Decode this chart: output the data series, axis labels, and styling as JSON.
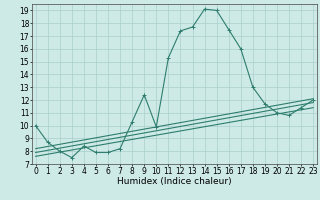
{
  "xlabel": "Humidex (Indice chaleur)",
  "main_line_x": [
    0,
    1,
    2,
    3,
    4,
    5,
    6,
    7,
    8,
    9,
    10,
    11,
    12,
    13,
    14,
    15,
    16,
    17,
    18,
    19,
    20,
    21,
    22,
    23
  ],
  "main_line_y": [
    10.0,
    8.7,
    8.0,
    7.5,
    8.4,
    7.9,
    7.9,
    8.2,
    10.3,
    12.4,
    9.9,
    15.3,
    17.4,
    17.7,
    19.1,
    19.0,
    17.5,
    16.0,
    13.0,
    11.7,
    11.0,
    10.8,
    11.4,
    12.0
  ],
  "reg_line1_x": [
    0,
    23
  ],
  "reg_line1_y": [
    7.9,
    11.8
  ],
  "reg_line2_x": [
    0,
    23
  ],
  "reg_line2_y": [
    7.6,
    11.4
  ],
  "reg_line3_x": [
    0,
    23
  ],
  "reg_line3_y": [
    8.2,
    12.1
  ],
  "line_color": "#2e7d6e",
  "bg_color": "#cdeae6",
  "grid_color": "#aacfcb",
  "xlim": [
    -0.3,
    23.3
  ],
  "ylim": [
    7,
    19.5
  ],
  "yticks": [
    7,
    8,
    9,
    10,
    11,
    12,
    13,
    14,
    15,
    16,
    17,
    18,
    19
  ],
  "xticks": [
    0,
    1,
    2,
    3,
    4,
    5,
    6,
    7,
    8,
    9,
    10,
    11,
    12,
    13,
    14,
    15,
    16,
    17,
    18,
    19,
    20,
    21,
    22,
    23
  ],
  "tick_fontsize": 5.5,
  "label_fontsize": 6.5,
  "line_width": 0.8,
  "marker_size": 2.5
}
